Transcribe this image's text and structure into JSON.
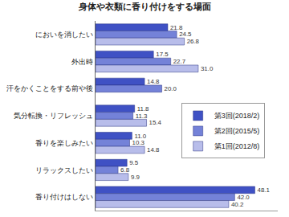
{
  "chart_data": {
    "type": "bar",
    "orientation": "horizontal",
    "title": "身体や衣類に香り付けをする場面",
    "categories": [
      "においを消したい",
      "外出時",
      "汗をかくことをする前や後",
      "気分転換・リフレッシュ",
      "香りを楽しみたい",
      "リラックスしたい",
      "香り付けはしない"
    ],
    "series": [
      {
        "name": "第3回(2018/2)",
        "color": "#3f51c4",
        "values": [
          21.8,
          17.5,
          14.8,
          11.8,
          11.0,
          9.5,
          48.1
        ],
        "value_labels": [
          "21.8",
          "17.5",
          "14.8",
          "11.8",
          "11.0",
          "9.5",
          "48.1"
        ]
      },
      {
        "name": "第2回(2015/5)",
        "color": "#7482d8",
        "values": [
          24.5,
          22.7,
          20.0,
          11.3,
          10.3,
          6.8,
          42.0
        ],
        "value_labels": [
          "24.5",
          "22.7",
          "20.0",
          "11.3",
          "10.3",
          "6.8",
          "42.0"
        ]
      },
      {
        "name": "第1回(2012/8)",
        "color": "#b8bdea",
        "values": [
          26.8,
          31.0,
          null,
          15.4,
          14.8,
          9.9,
          40.2
        ],
        "value_labels": [
          "26.8",
          "31.0",
          null,
          "15.4",
          "14.8",
          "9.9",
          "40.2"
        ]
      }
    ],
    "xlim": [
      0,
      55
    ],
    "data_labels": true,
    "tick_labels": "y",
    "grid": false,
    "legend": "right"
  }
}
